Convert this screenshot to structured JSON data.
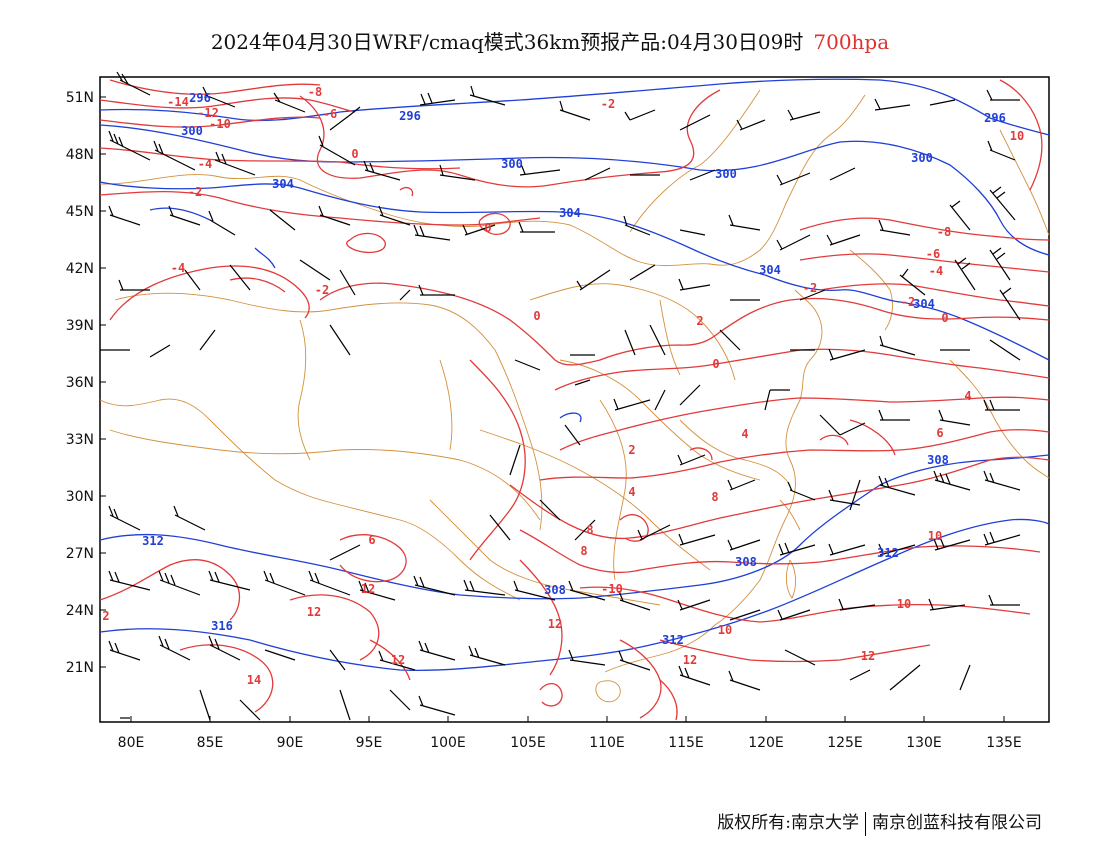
{
  "title": {
    "main": "2024年04月30日WRF/cmaq模式36km预报产品:04月30日09时",
    "level": "700hpa"
  },
  "map": {
    "lon_range": [
      78,
      138
    ],
    "lat_range": [
      18,
      52
    ],
    "lon_ticks": [
      "80E",
      "85E",
      "90E",
      "95E",
      "100E",
      "105E",
      "110E",
      "115E",
      "120E",
      "125E",
      "130E",
      "135E"
    ],
    "lat_ticks": [
      "51N",
      "48N",
      "45N",
      "42N",
      "39N",
      "36N",
      "33N",
      "30N",
      "27N",
      "24N",
      "21N"
    ],
    "colors": {
      "temperature": "#e23a3a",
      "height": "#1f3fd6",
      "border": "#d4903c",
      "wind": "#000000"
    },
    "height_labels": [
      "296",
      "296",
      "300",
      "304",
      "300",
      "300",
      "300",
      "304",
      "304",
      "304",
      "308",
      "308",
      "308",
      "312",
      "312",
      "312",
      "316",
      "296"
    ],
    "temp_labels": [
      "-14",
      "-12",
      "-10",
      "-8",
      "-6",
      "-4",
      "-2",
      "-2",
      "-4",
      "-2",
      "0",
      "0",
      "0",
      "0",
      "-2",
      "-4",
      "-6",
      "-8",
      "-10",
      "2",
      "-2",
      "0",
      "2",
      "4",
      "4",
      "4",
      "6",
      "6",
      "8",
      "8",
      "8",
      "10",
      "12",
      "12",
      "12",
      "14",
      "2",
      "10",
      "10",
      "12",
      "12",
      "12",
      "10"
    ]
  },
  "footer": {
    "left": "版权所有:南京大学",
    "right": "南京创蓝科技有限公司"
  }
}
